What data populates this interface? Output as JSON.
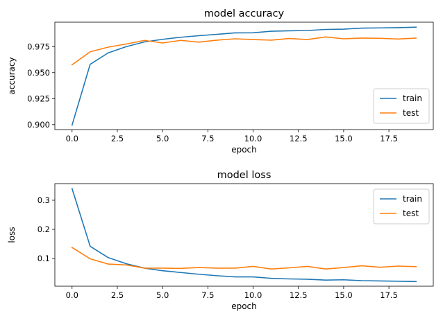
{
  "chart_data": [
    {
      "type": "line",
      "title": "model accuracy",
      "xlabel": "epoch",
      "ylabel": "accuracy",
      "xlim": [
        -0.95,
        19.95
      ],
      "ylim": [
        0.8952,
        0.9985
      ],
      "xticks": [
        0.0,
        2.5,
        5.0,
        7.5,
        10.0,
        12.5,
        15.0,
        17.5
      ],
      "xtick_labels": [
        "0.0",
        "2.5",
        "5.0",
        "7.5",
        "10.0",
        "12.5",
        "15.0",
        "17.5"
      ],
      "yticks": [
        0.9,
        0.925,
        0.95,
        0.975
      ],
      "ytick_labels": [
        "0.900",
        "0.925",
        "0.950",
        "0.975"
      ],
      "grid": false,
      "legend_position": "lower-right",
      "x": [
        0,
        1,
        2,
        3,
        4,
        5,
        6,
        7,
        8,
        9,
        10,
        11,
        12,
        13,
        14,
        15,
        16,
        17,
        18,
        19
      ],
      "series": [
        {
          "name": "train",
          "color": "#1f77b4",
          "values": [
            0.8995,
            0.958,
            0.969,
            0.975,
            0.9795,
            0.982,
            0.984,
            0.9855,
            0.9868,
            0.9882,
            0.9883,
            0.9898,
            0.9902,
            0.9905,
            0.9915,
            0.9918,
            0.9928,
            0.993,
            0.9932,
            0.9937
          ]
        },
        {
          "name": "test",
          "color": "#ff7f0e",
          "values": [
            0.9575,
            0.97,
            0.9745,
            0.9775,
            0.981,
            0.9785,
            0.981,
            0.9793,
            0.9812,
            0.9825,
            0.9818,
            0.9812,
            0.9828,
            0.9818,
            0.9843,
            0.9825,
            0.9832,
            0.983,
            0.9823,
            0.9832
          ]
        }
      ]
    },
    {
      "type": "line",
      "title": "model loss",
      "xlabel": "epoch",
      "ylabel": "loss",
      "xlim": [
        -0.95,
        19.95
      ],
      "ylim": [
        0.005,
        0.357
      ],
      "xticks": [
        0.0,
        2.5,
        5.0,
        7.5,
        10.0,
        12.5,
        15.0,
        17.5
      ],
      "xtick_labels": [
        "0.0",
        "2.5",
        "5.0",
        "7.5",
        "10.0",
        "12.5",
        "15.0",
        "17.5"
      ],
      "yticks": [
        0.1,
        0.2,
        0.3
      ],
      "ytick_labels": [
        "0.1",
        "0.2",
        "0.3"
      ],
      "grid": false,
      "legend_position": "upper-right",
      "x": [
        0,
        1,
        2,
        3,
        4,
        5,
        6,
        7,
        8,
        9,
        10,
        11,
        12,
        13,
        14,
        15,
        16,
        17,
        18,
        19
      ],
      "series": [
        {
          "name": "train",
          "color": "#1f77b4",
          "values": [
            0.34,
            0.142,
            0.103,
            0.082,
            0.067,
            0.058,
            0.052,
            0.046,
            0.041,
            0.037,
            0.037,
            0.032,
            0.03,
            0.029,
            0.026,
            0.027,
            0.024,
            0.023,
            0.022,
            0.021
          ]
        },
        {
          "name": "test",
          "color": "#ff7f0e",
          "values": [
            0.138,
            0.099,
            0.081,
            0.078,
            0.067,
            0.067,
            0.066,
            0.069,
            0.067,
            0.067,
            0.073,
            0.064,
            0.068,
            0.073,
            0.064,
            0.069,
            0.075,
            0.07,
            0.074,
            0.072
          ]
        }
      ]
    }
  ]
}
